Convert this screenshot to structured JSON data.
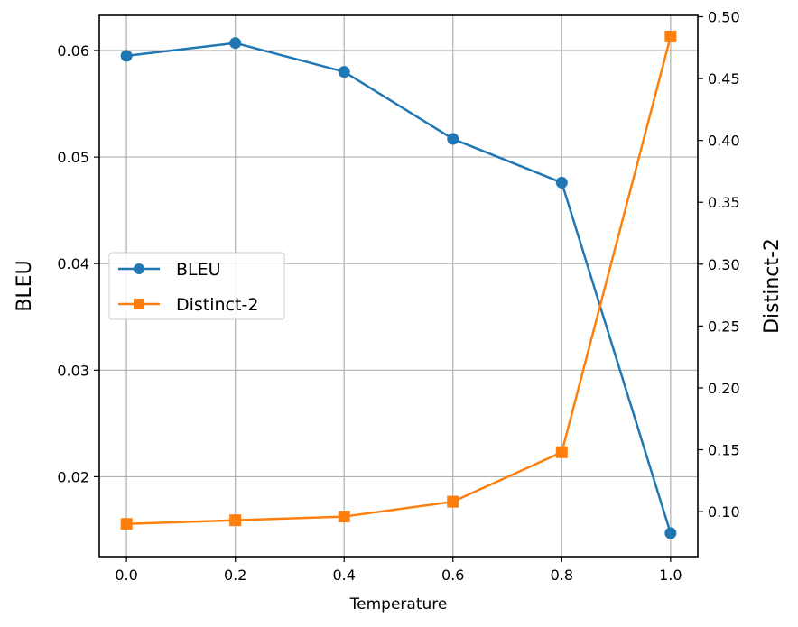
{
  "chart_data": {
    "type": "line",
    "xlabel": "Temperature",
    "ylabel_left": "BLEU",
    "ylabel_right": "Distinct-2",
    "x": [
      0.0,
      0.2,
      0.4,
      0.6,
      0.8,
      1.0
    ],
    "x_ticks": [
      "0.0",
      "0.2",
      "0.4",
      "0.6",
      "0.8",
      "1.0"
    ],
    "xlim": [
      -0.05,
      1.05
    ],
    "ylim_left": [
      0.0125,
      0.0633
    ],
    "ylim_right": [
      0.0636,
      0.5011
    ],
    "y_ticks_left": [
      "0.02",
      "0.03",
      "0.04",
      "0.05",
      "0.06"
    ],
    "y_ticks_right": [
      "0.10",
      "0.15",
      "0.20",
      "0.25",
      "0.30",
      "0.35",
      "0.40",
      "0.45",
      "0.50"
    ],
    "grid": true,
    "legend_position": "center-left",
    "series": [
      {
        "name": "BLEU",
        "axis": "left",
        "marker": "circle",
        "color": "#1f77b4",
        "values": [
          0.0595,
          0.0607,
          0.058,
          0.0517,
          0.0476,
          0.0147
        ]
      },
      {
        "name": "Distinct-2",
        "axis": "right",
        "marker": "square",
        "color": "#ff7f0e",
        "values": [
          0.09,
          0.093,
          0.096,
          0.108,
          0.148,
          0.484
        ]
      }
    ]
  }
}
